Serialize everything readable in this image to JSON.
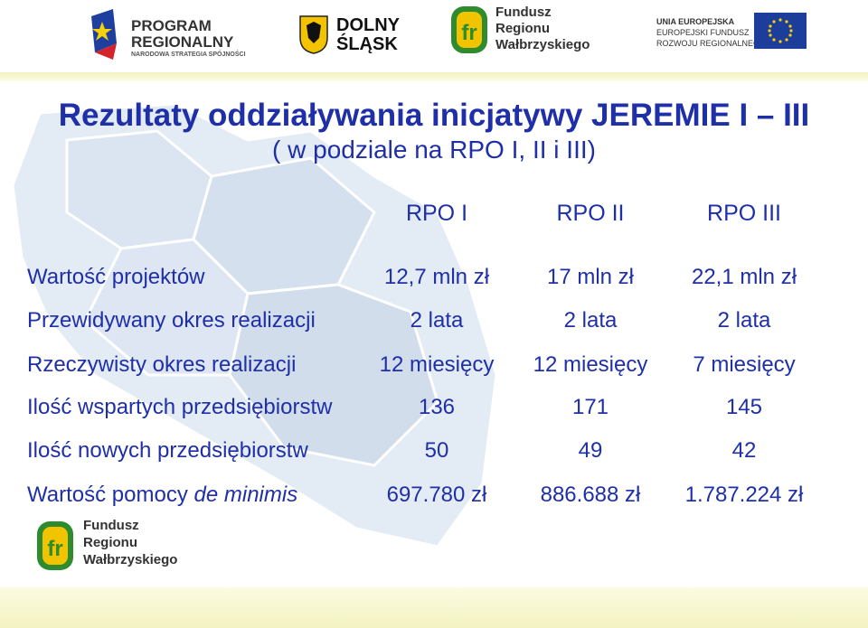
{
  "logos": {
    "program": {
      "line1": "PROGRAM",
      "line2": "REGIONALNY",
      "line3": "NARODOWA STRATEGIA SPÓJNOŚCI"
    },
    "dolny_slask": {
      "line1": "DOLNY",
      "line2": "ŚLĄSK"
    },
    "fundusz_top": {
      "line1": "Fundusz",
      "line2": "Regionu",
      "line3": "Wałbrzyskiego"
    },
    "ue": {
      "line1": "UNIA EUROPEJSKA",
      "line2": "EUROPEJSKI FUNDUSZ",
      "line3": "ROZWOJU REGIONALNEGO"
    },
    "fundusz_bottom": {
      "line1": "Fundusz",
      "line2": "Regionu",
      "line3": "Wałbrzyskiego"
    }
  },
  "title": "Rezultaty oddziaływania inicjatywy JEREMIE I – III",
  "subtitle": "( w podziale na RPO I, II i III)",
  "columns": [
    "RPO I",
    "RPO II",
    "RPO  III"
  ],
  "rows": [
    {
      "label": "Wartość projektów",
      "values": [
        "12,7 mln zł",
        "17 mln zł",
        "22,1 mln zł"
      ]
    },
    {
      "label": "Przewidywany okres realizacji",
      "values": [
        "2 lata",
        "2 lata",
        "2 lata"
      ]
    },
    {
      "label": "Rzeczywisty okres realizacji",
      "values": [
        "12 miesięcy",
        "12 miesięcy",
        "7 miesięcy"
      ]
    },
    {
      "label": "Ilość wspartych przedsiębiorstw",
      "values": [
        "136",
        "171",
        "145"
      ]
    },
    {
      "label": "Ilość nowych przedsiębiorstw",
      "values": [
        "50",
        "49",
        "42"
      ]
    },
    {
      "label_main": "Wartość pomocy ",
      "label_italic": "de minimis",
      "values": [
        "697.780 zł",
        "886.688 zł",
        "1.787.224 zł"
      ]
    }
  ]
}
